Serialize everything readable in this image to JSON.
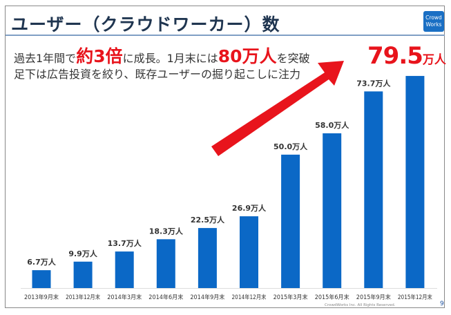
{
  "slide": {
    "title": "ユーザー（クラウドワーカー）数",
    "logo_text": [
      "Crowd",
      "Works"
    ],
    "headline": {
      "part1": "過去1年間で",
      "emph1": "約3倍",
      "part2": "に成長。1月末には",
      "emph2": "80万人",
      "part3": "を突破"
    },
    "subline": "足下は広告投資を絞り、既存ユーザーの掘り起こしに注力",
    "callout": {
      "value": "79.5",
      "unit": "万人"
    },
    "copyright": "CrowdWorks Inc. All Rights Reserved.",
    "page_number": "9",
    "colors": {
      "bar": "#0b68c6",
      "accent": "#e8141c",
      "title": "#1f3550"
    }
  },
  "chart_data": {
    "type": "bar",
    "categories": [
      "2013年9月末",
      "2013年12月末",
      "2014年3月末",
      "2014年6月末",
      "2014年9月末",
      "2014年12月末",
      "2015年3月末",
      "2015年6月末",
      "2015年9月末",
      "2015年12月末"
    ],
    "values": [
      6.7,
      9.9,
      13.7,
      18.3,
      22.5,
      26.9,
      50.0,
      58.0,
      73.7,
      79.5
    ],
    "data_labels": [
      "6.7万人",
      "9.9万人",
      "13.7万人",
      "18.3万人",
      "22.5万人",
      "26.9万人",
      "50.0万人",
      "58.0万人",
      "73.7万人",
      ""
    ],
    "unit": "万人",
    "ylim": [
      0,
      80
    ],
    "grid": false,
    "annotation": "red upward arrow indicating growth"
  }
}
